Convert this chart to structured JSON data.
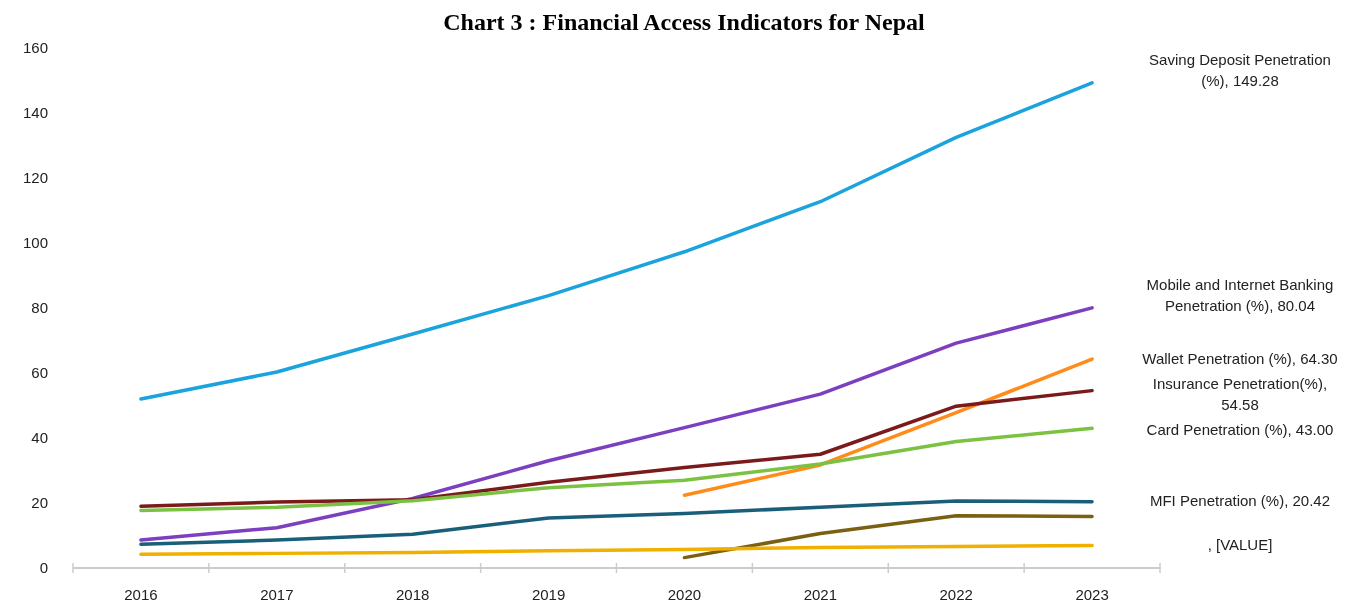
{
  "chart_data": {
    "type": "line",
    "title": "Chart 3 : Financial Access Indicators for Nepal",
    "categories": [
      "2016",
      "2017",
      "2018",
      "2019",
      "2020",
      "2021",
      "2022",
      "2023"
    ],
    "ylim": [
      0,
      160
    ],
    "yticks": [
      0,
      20,
      40,
      60,
      80,
      100,
      120,
      140,
      160
    ],
    "series": [
      {
        "name": "Saving Deposit Penetration (%), 149.28",
        "color": "#1aa3dc",
        "values": [
          52,
          60.3,
          72,
          83.8,
          97.3,
          112.7,
          132.5,
          149.28
        ]
      },
      {
        "name": "Mobile and Internet Banking Penetration (%), 80.04",
        "color": "#7b3fbf",
        "values": [
          8.6,
          12.4,
          21.4,
          33,
          43.2,
          53.5,
          69.2,
          80.04
        ]
      },
      {
        "name": "Wallet Penetration (%), 64.30",
        "color": "#ff8c1a",
        "values": [
          null,
          null,
          null,
          null,
          22.4,
          31.7,
          47.8,
          64.3
        ]
      },
      {
        "name": "Insurance Penetration(%), 54.58",
        "color": "#7b1a1a",
        "values": [
          19,
          20.3,
          21,
          26.4,
          30.9,
          35,
          49.8,
          54.58
        ]
      },
      {
        "name": "Card Penetration (%), 43.00",
        "color": "#7cc242",
        "values": [
          17.7,
          18.7,
          20.7,
          24.7,
          27,
          32,
          38.9,
          43
        ]
      },
      {
        "name": "MFI Penetration (%), 20.42",
        "color": "#1a5f7a",
        "values": [
          7.3,
          8.6,
          10.4,
          15.4,
          16.8,
          18.7,
          20.6,
          20.42
        ]
      },
      {
        "color": "#7a6010",
        "values": [
          null,
          null,
          null,
          null,
          3.2,
          10.6,
          16.1,
          15.86
        ]
      },
      {
        "name": ", [VALUE]",
        "color": "#f0b000",
        "values": [
          4.2,
          4.5,
          4.8,
          5.3,
          5.7,
          6.3,
          6.6,
          6.9
        ]
      }
    ]
  }
}
